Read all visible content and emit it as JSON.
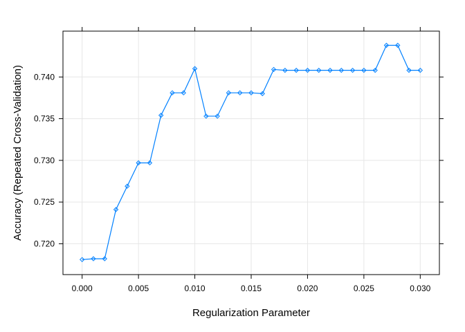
{
  "chart_data": {
    "type": "line",
    "xlabel": "Regularization Parameter",
    "ylabel": "Accuracy (Repeated Cross-Validation)",
    "xlim": [
      -0.0017,
      0.0317
    ],
    "ylim": [
      0.7163,
      0.7455
    ],
    "x_ticks": [
      "0.000",
      "0.005",
      "0.010",
      "0.015",
      "0.020",
      "0.025",
      "0.030"
    ],
    "x_tick_values": [
      0.0,
      0.005,
      0.01,
      0.015,
      0.02,
      0.025,
      0.03
    ],
    "y_ticks": [
      "0.720",
      "0.725",
      "0.730",
      "0.735",
      "0.740"
    ],
    "y_tick_values": [
      0.72,
      0.725,
      0.73,
      0.735,
      0.74
    ],
    "grid": true,
    "color": "#0080ff",
    "marker": "diamond",
    "x": [
      0.0,
      0.001,
      0.002,
      0.003,
      0.004,
      0.005,
      0.006,
      0.007,
      0.008,
      0.009,
      0.01,
      0.011,
      0.012,
      0.013,
      0.014,
      0.015,
      0.016,
      0.017,
      0.018,
      0.019,
      0.02,
      0.021,
      0.022,
      0.023,
      0.024,
      0.025,
      0.026,
      0.027,
      0.028,
      0.029,
      0.03
    ],
    "y": [
      0.7181,
      0.7182,
      0.7182,
      0.7241,
      0.7269,
      0.7297,
      0.7297,
      0.7354,
      0.7381,
      0.7381,
      0.741,
      0.7353,
      0.7353,
      0.7381,
      0.7381,
      0.7381,
      0.738,
      0.7409,
      0.7408,
      0.7408,
      0.7408,
      0.7408,
      0.7408,
      0.7408,
      0.7408,
      0.7408,
      0.7408,
      0.7438,
      0.7438,
      0.7408,
      0.7408
    ]
  }
}
